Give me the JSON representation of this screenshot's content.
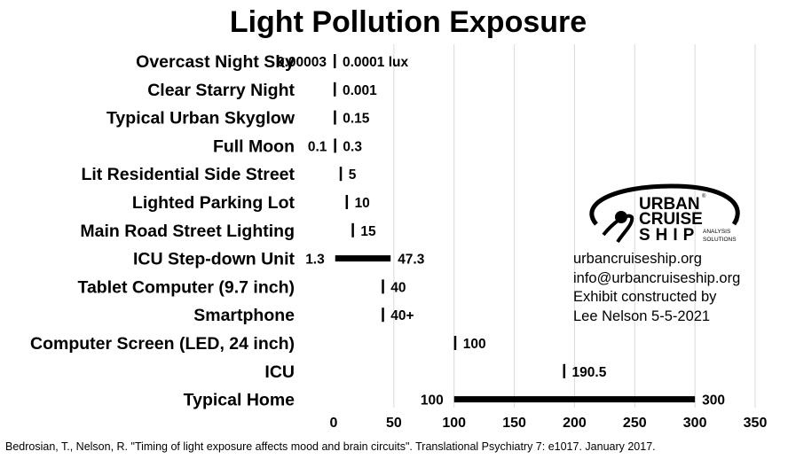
{
  "chart_data": {
    "type": "bar",
    "title": "Light Pollution Exposure",
    "xlabel": "",
    "ylabel": "",
    "xlim": [
      0,
      350
    ],
    "xticks": [
      0,
      50,
      100,
      150,
      200,
      250,
      300,
      350
    ],
    "grid": "vertical",
    "categories": [
      "Overcast Night Sky",
      "Clear Starry Night",
      "Typical Urban Skyglow",
      "Full Moon",
      "Lit Residential Side Street",
      "Lighted Parking Lot",
      "Main Road Street Lighting",
      "ICU Step-down Unit",
      "Tablet Computer (9.7 inch)",
      "Smartphone",
      "Computer Screen (LED, 24 inch)",
      "ICU",
      "Typical Home"
    ],
    "ranges": [
      {
        "low": 3e-05,
        "high": 0.0001,
        "low_label": "0.00003",
        "high_label": "0.0001 lux"
      },
      {
        "low": null,
        "high": 0.001,
        "low_label": "",
        "high_label": "0.001"
      },
      {
        "low": null,
        "high": 0.15,
        "low_label": "",
        "high_label": "0.15"
      },
      {
        "low": 0.1,
        "high": 0.3,
        "low_label": "0.1",
        "high_label": "0.3"
      },
      {
        "low": null,
        "high": 5,
        "low_label": "",
        "high_label": "5"
      },
      {
        "low": null,
        "high": 10,
        "low_label": "",
        "high_label": "10"
      },
      {
        "low": null,
        "high": 15,
        "low_label": "",
        "high_label": "15"
      },
      {
        "low": 1.3,
        "high": 47.3,
        "low_label": "1.3",
        "high_label": "47.3"
      },
      {
        "low": null,
        "high": 40,
        "low_label": "",
        "high_label": "40"
      },
      {
        "low": null,
        "high": 40,
        "low_label": "",
        "high_label": "40+"
      },
      {
        "low": null,
        "high": 100,
        "low_label": "",
        "high_label": "100"
      },
      {
        "low": null,
        "high": 190.5,
        "low_label": "",
        "high_label": "190.5"
      },
      {
        "low": 100,
        "high": 300,
        "low_label": "100",
        "high_label": "300"
      }
    ],
    "colors": {
      "bar": "#000000",
      "grid": "#d9d9d9",
      "text": "#000000"
    }
  },
  "logo": {
    "letters_line1": "URBAN",
    "letters_line2": "CRUISE",
    "letters_line3": "SHIP",
    "tagline1": "ANALYSIS",
    "tagline2": "SOLUTIONS",
    "mark": "®",
    "copyright": "©"
  },
  "contact": {
    "website": "urbancruiseship.org",
    "email": "info@urbancruiseship.org",
    "credit_line1": "Exhibit constructed by",
    "credit_line2": "Lee Nelson 5-5-2021"
  },
  "source": "Bedrosian, T., Nelson, R. \"Timing of light exposure affects mood and brain circuits\". Translational Psychiatry 7: e1017. January 2017."
}
